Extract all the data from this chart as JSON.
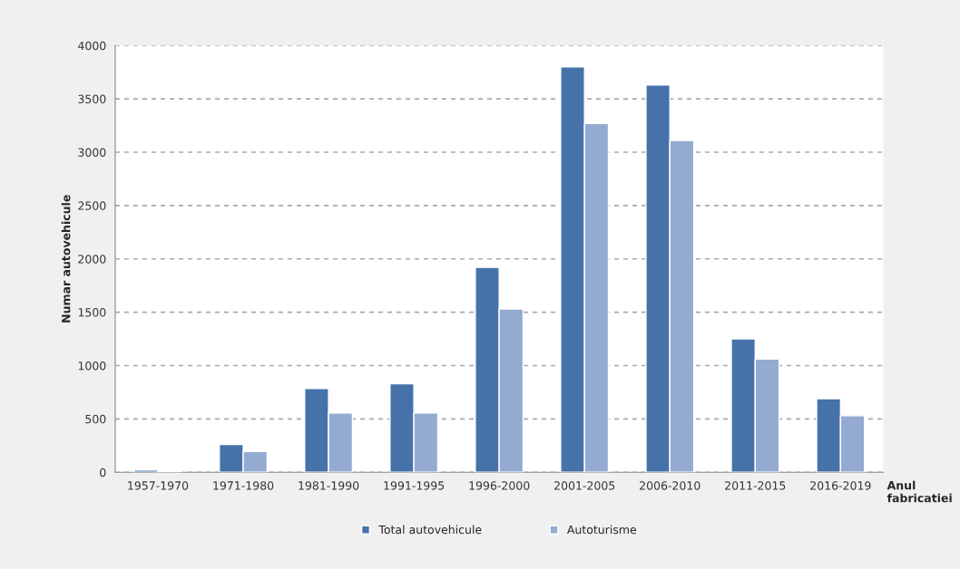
{
  "chart_data": {
    "type": "bar",
    "ylabel": "Numar autovehicule",
    "xlabel": "Anul fabricatiei",
    "categories": [
      "1957-1970",
      "1971-1980",
      "1981-1990",
      "1991-1995",
      "1996-2000",
      "2001-2005",
      "2006-2010",
      "2011-2015",
      "2016-2019"
    ],
    "series": [
      {
        "name": "Total autovehicule",
        "color": "#4672aa",
        "values": [
          20,
          260,
          785,
          830,
          1920,
          3800,
          3630,
          1250,
          690
        ]
      },
      {
        "name": "Autoturisme",
        "color": "#94aad1",
        "values": [
          5,
          195,
          555,
          555,
          1530,
          3270,
          3110,
          1060,
          530
        ]
      }
    ],
    "ylim": [
      0,
      4000
    ],
    "yticks": [
      0,
      500,
      1000,
      1500,
      2000,
      2500,
      3000,
      3500,
      4000
    ],
    "grid": "y",
    "legend": "bottom"
  }
}
